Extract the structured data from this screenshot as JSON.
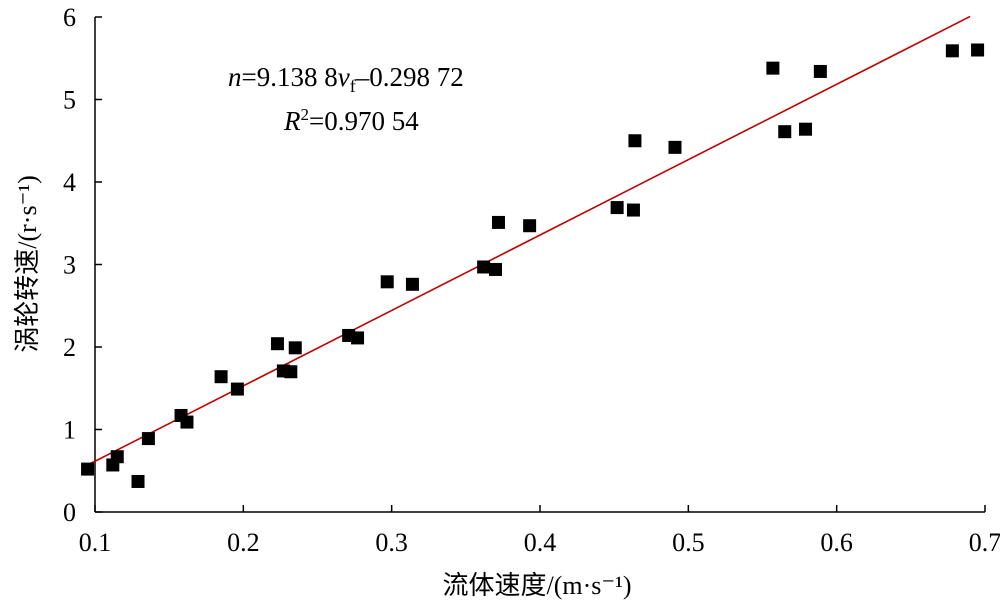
{
  "chart_data": {
    "type": "scatter",
    "title": "",
    "xlabel": "流体速度/(m·s⁻¹)",
    "ylabel": "涡轮转速/(r·s⁻¹)",
    "xlim": [
      0.1,
      0.7
    ],
    "ylim": [
      0,
      6
    ],
    "xticks": [
      0.1,
      0.2,
      0.3,
      0.4,
      0.5,
      0.6,
      0.7
    ],
    "yticks": [
      0,
      1,
      2,
      3,
      4,
      5,
      6
    ],
    "xtick_labels": [
      "0.1",
      "0.2",
      "0.3",
      "0.4",
      "0.5",
      "0.6",
      "0.7"
    ],
    "ytick_labels": [
      "0",
      "1",
      "2",
      "3",
      "4",
      "5",
      "6"
    ],
    "grid": false,
    "legend": "none",
    "marker_color": "#000000",
    "fit_color": "#c00000",
    "series": [
      {
        "points": [
          [
            0.095,
            0.52
          ],
          [
            0.112,
            0.57
          ],
          [
            0.115,
            0.67
          ],
          [
            0.129,
            0.37
          ],
          [
            0.136,
            0.89
          ],
          [
            0.158,
            1.17
          ],
          [
            0.162,
            1.09
          ],
          [
            0.185,
            1.64
          ],
          [
            0.196,
            1.49
          ],
          [
            0.223,
            2.04
          ],
          [
            0.227,
            1.71
          ],
          [
            0.232,
            1.7
          ],
          [
            0.235,
            1.99
          ],
          [
            0.271,
            2.14
          ],
          [
            0.277,
            2.11
          ],
          [
            0.297,
            2.79
          ],
          [
            0.314,
            2.76
          ],
          [
            0.362,
            2.97
          ],
          [
            0.37,
            2.94
          ],
          [
            0.372,
            3.51
          ],
          [
            0.393,
            3.47
          ],
          [
            0.452,
            3.69
          ],
          [
            0.463,
            3.66
          ],
          [
            0.464,
            4.5
          ],
          [
            0.491,
            4.42
          ],
          [
            0.557,
            5.38
          ],
          [
            0.565,
            4.61
          ],
          [
            0.579,
            4.64
          ],
          [
            0.589,
            5.34
          ],
          [
            0.678,
            5.59
          ],
          [
            0.695,
            5.6
          ]
        ]
      }
    ],
    "fit_line": {
      "slope": 9.1388,
      "intercept": -0.29872,
      "x_range": [
        0.095,
        0.69
      ]
    },
    "annotations": {
      "equation": {
        "n": "n",
        "eq1": "=9.138 8",
        "v": "v",
        "f": "f",
        "eq2": "–0.298 72"
      },
      "r2": {
        "R": "R",
        "two": "2",
        "eq": "=0.970 54"
      }
    }
  }
}
